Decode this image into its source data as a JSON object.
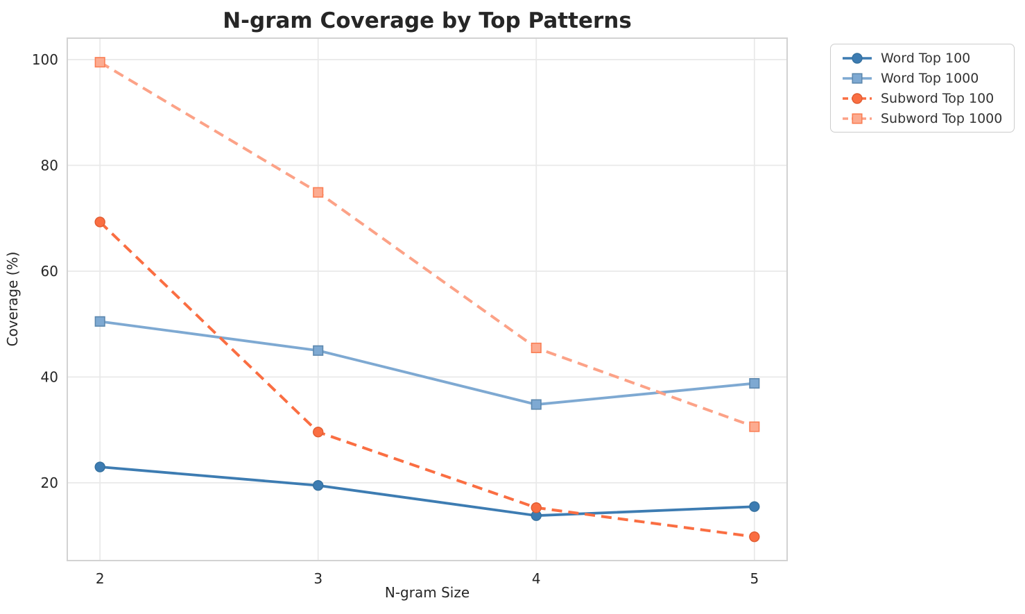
{
  "chart_data": {
    "type": "line",
    "title": "N-gram Coverage by Top Patterns",
    "xlabel": "N-gram Size",
    "ylabel": "Coverage (%)",
    "categories": [
      2,
      3,
      4,
      5
    ],
    "xticklabels": [
      "2",
      "3",
      "4",
      "5"
    ],
    "yticks": [
      20,
      40,
      60,
      80,
      100
    ],
    "yticklabels": [
      "20",
      "40",
      "60",
      "80",
      "100"
    ],
    "xlim": [
      1.85,
      5.15
    ],
    "ylim": [
      5.3,
      104.05
    ],
    "grid": true,
    "legend_position": "upper-right-outside",
    "series": [
      {
        "name": "Word Top 100",
        "color": "#3d7cb2",
        "marker_fill": "#3d7cb2",
        "marker_edge": "#35719f",
        "linestyle": "solid",
        "marker": "circle",
        "values": [
          23.0,
          19.5,
          13.8,
          15.5
        ]
      },
      {
        "name": "Word Top 1000",
        "color": "#7ea9d2",
        "marker_fill": "#7ea9d2",
        "marker_edge": "#5d88ae",
        "linestyle": "solid",
        "marker": "square",
        "values": [
          50.5,
          45.0,
          34.8,
          38.8
        ]
      },
      {
        "name": "Subword Top 100",
        "color": "#fa6e42",
        "marker_fill": "#fa6e42",
        "marker_edge": "#e05c31",
        "linestyle": "dashed",
        "marker": "circle",
        "values": [
          69.3,
          29.6,
          15.3,
          9.8
        ]
      },
      {
        "name": "Subword Top 1000",
        "color": "#fca287",
        "marker_fill": "#fcab90",
        "marker_edge": "#fa7e54",
        "linestyle": "dashed",
        "marker": "square",
        "values": [
          99.5,
          74.9,
          45.5,
          30.6
        ]
      }
    ]
  }
}
